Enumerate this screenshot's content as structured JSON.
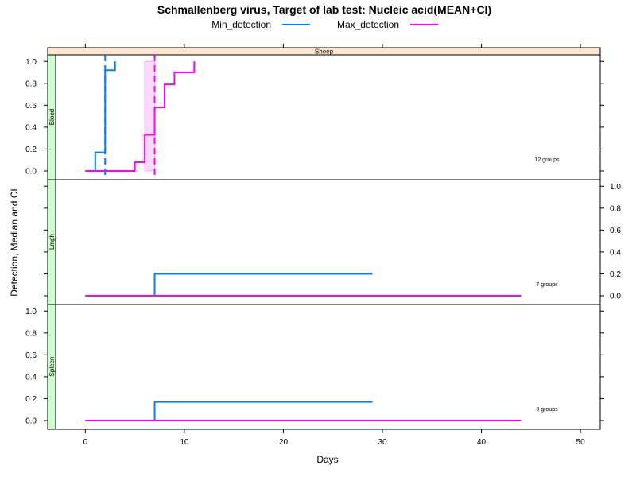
{
  "chart_data": {
    "type": "line",
    "title": "Schmallenberg virus, Target of lab test: Nucleic acid(MEAN+CI)",
    "xlabel": "Days",
    "ylabel": "Detection, Median and CI",
    "strip": "Sheep",
    "legend": {
      "placement": "top",
      "entries": [
        {
          "name": "Min_detection",
          "color": "#0080ff"
        },
        {
          "name": "Max_detection",
          "color": "#ff00ff"
        }
      ]
    },
    "xlim": [
      -3,
      52
    ],
    "ylim": [
      -0.08,
      1.06
    ],
    "x_ticks": [
      0,
      10,
      20,
      30,
      40,
      50
    ],
    "y_ticks": [
      0.0,
      0.2,
      0.4,
      0.6,
      0.8,
      1.0
    ],
    "y_tick_labels": [
      "0.0",
      "0.2",
      "0.4",
      "0.6",
      "0.8",
      "1.0"
    ],
    "x_tick_labels": [
      "0",
      "10",
      "20",
      "30",
      "40",
      "50"
    ],
    "panels": [
      {
        "name": "Blood",
        "groups_label": "12 groups",
        "y_axis_side": "left",
        "series": [
          {
            "name": "Min_detection",
            "color": "#0080ff",
            "x": [
              0,
              1,
              2,
              3
            ],
            "y": [
              0.0,
              0.17,
              0.92,
              1.0
            ],
            "median": 2,
            "ci": null
          },
          {
            "name": "Max_detection",
            "color": "#ff00ff",
            "x": [
              0,
              5,
              6,
              7,
              8,
              9,
              11
            ],
            "y": [
              0.0,
              0.08,
              0.33,
              0.58,
              0.79,
              0.9,
              1.0
            ],
            "median": 7,
            "ci": [
              6,
              7
            ]
          }
        ]
      },
      {
        "name": "Lmph",
        "groups_label": "7 groups",
        "y_axis_side": "right",
        "series": [
          {
            "name": "Min_detection",
            "color": "#0080ff",
            "x": [
              0,
              7,
              29
            ],
            "y": [
              0.0,
              0.2,
              0.2
            ],
            "median": null,
            "ci": null
          },
          {
            "name": "Max_detection",
            "color": "#ff00ff",
            "x": [
              0,
              44
            ],
            "y": [
              0.0,
              0.0
            ],
            "median": null,
            "ci": null
          }
        ]
      },
      {
        "name": "Spleen",
        "groups_label": "8 groups",
        "y_axis_side": "left",
        "series": [
          {
            "name": "Min_detection",
            "color": "#0080ff",
            "x": [
              0,
              7,
              29
            ],
            "y": [
              0.0,
              0.17,
              0.17
            ],
            "median": null,
            "ci": null
          },
          {
            "name": "Max_detection",
            "color": "#ff00ff",
            "x": [
              0,
              44
            ],
            "y": [
              0.0,
              0.0
            ],
            "median": null,
            "ci": null
          }
        ]
      }
    ]
  }
}
